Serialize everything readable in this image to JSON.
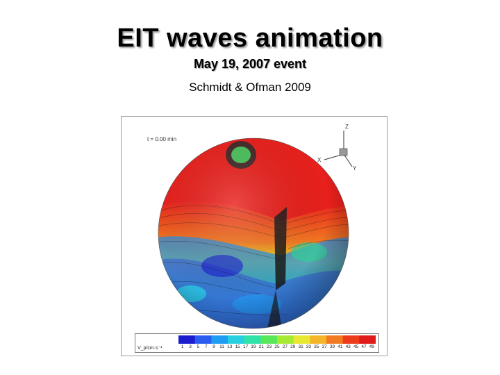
{
  "slide": {
    "title": "EIT waves animation",
    "subtitle": "May 19, 2007 event",
    "author": "Schmidt & Ofman 2009"
  },
  "figure": {
    "time_label": "t = 0.00 min",
    "axes": {
      "z": "Z",
      "x": "X",
      "y": "Y"
    },
    "colorbar": {
      "title": "V_p/cm·s⁻¹",
      "ticks": [
        "1",
        "3",
        "5",
        "7",
        "9",
        "11",
        "13",
        "15",
        "17",
        "19",
        "21",
        "23",
        "25",
        "27",
        "29",
        "31",
        "33",
        "35",
        "37",
        "39",
        "41",
        "43",
        "45",
        "47",
        "49"
      ],
      "colors": [
        "#1b1bd0",
        "#2a5cf0",
        "#1f9df5",
        "#27d0e0",
        "#2fe3a8",
        "#57e85a",
        "#a6ea33",
        "#e8e830",
        "#f5b52a",
        "#f27a22",
        "#ee3b1c",
        "#e11a1a"
      ]
    },
    "sphere_colors": {
      "hot": "#e8201c",
      "cool": "#2b8fe0",
      "mid": "#35d09a"
    }
  }
}
